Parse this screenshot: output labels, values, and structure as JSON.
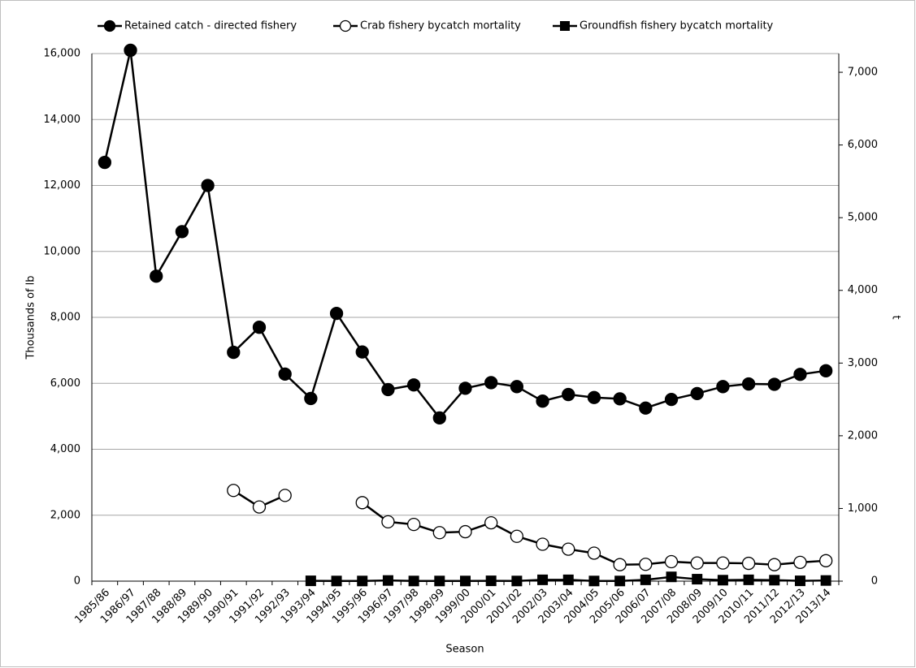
{
  "chart_data": {
    "type": "line",
    "x_label": "Season",
    "y_label": "Thousands of lb",
    "y2_label": "t",
    "categories": [
      "1985/86",
      "1986/97",
      "1987/88",
      "1988/89",
      "1989/90",
      "1990/91",
      "1991/92",
      "1992/93",
      "1993/94",
      "1994/95",
      "1995/96",
      "1996/97",
      "1997/98",
      "1998/99",
      "1999/00",
      "2000/01",
      "2001/02",
      "2002/03",
      "2003/04",
      "2004/05",
      "2005/06",
      "2006/07",
      "2007/08",
      "2008/09",
      "2009/10",
      "2010/11",
      "2011/12",
      "2012/13",
      "2013/14"
    ],
    "series": [
      {
        "name": "Retained catch - directed fishery",
        "color": "#000000",
        "marker": "circle",
        "values": [
          12700,
          16100,
          9250,
          10600,
          12000,
          6940,
          7700,
          6280,
          5540,
          8120,
          6950,
          5810,
          5950,
          4950,
          5850,
          6020,
          5900,
          5460,
          5660,
          5570,
          5530,
          5250,
          5510,
          5690,
          5900,
          5980,
          5970,
          6270,
          6380
        ]
      },
      {
        "name": "Crab fishery bycatch mortality",
        "color": "#000000",
        "marker": "circle-open",
        "values": [
          null,
          null,
          null,
          null,
          null,
          2750,
          2250,
          2600,
          null,
          null,
          2380,
          1800,
          1720,
          1470,
          1500,
          1770,
          1360,
          1120,
          970,
          850,
          500,
          510,
          590,
          550,
          550,
          540,
          500,
          570,
          620
        ]
      },
      {
        "name": "Groundfish fishery bycatch mortality",
        "color": "#000000",
        "marker": "square",
        "values": [
          null,
          null,
          null,
          null,
          null,
          null,
          null,
          null,
          10,
          5,
          5,
          20,
          5,
          5,
          5,
          10,
          5,
          40,
          40,
          5,
          5,
          40,
          130,
          60,
          30,
          40,
          30,
          10,
          20
        ]
      }
    ],
    "ylim": [
      0,
      16000
    ],
    "yticks": [
      0,
      {
        "value": 2000,
        "label": "2,000"
      },
      {
        "value": 4000,
        "label": "4,000"
      },
      {
        "value": 6000,
        "label": "6,000"
      },
      {
        "value": 8000,
        "label": "8,000"
      },
      {
        "value": 10000,
        "label": "10,000"
      },
      {
        "value": 12000,
        "label": "12,000"
      },
      {
        "value": 14000,
        "label": "14,000"
      },
      {
        "value": 16000,
        "label": "16,000"
      }
    ],
    "y2lim": [
      0,
      7257.48
    ],
    "y2ticks": [
      0,
      {
        "value": 1000,
        "label": "1,000"
      },
      {
        "value": 2000,
        "label": "2,000"
      },
      {
        "value": 3000,
        "label": "3,000"
      },
      {
        "value": 4000,
        "label": "4,000"
      },
      {
        "value": 5000,
        "label": "5,000"
      },
      {
        "value": 6000,
        "label": "6,000"
      },
      {
        "value": 7000,
        "label": "7,000"
      }
    ],
    "grid": true,
    "legend": "top"
  }
}
